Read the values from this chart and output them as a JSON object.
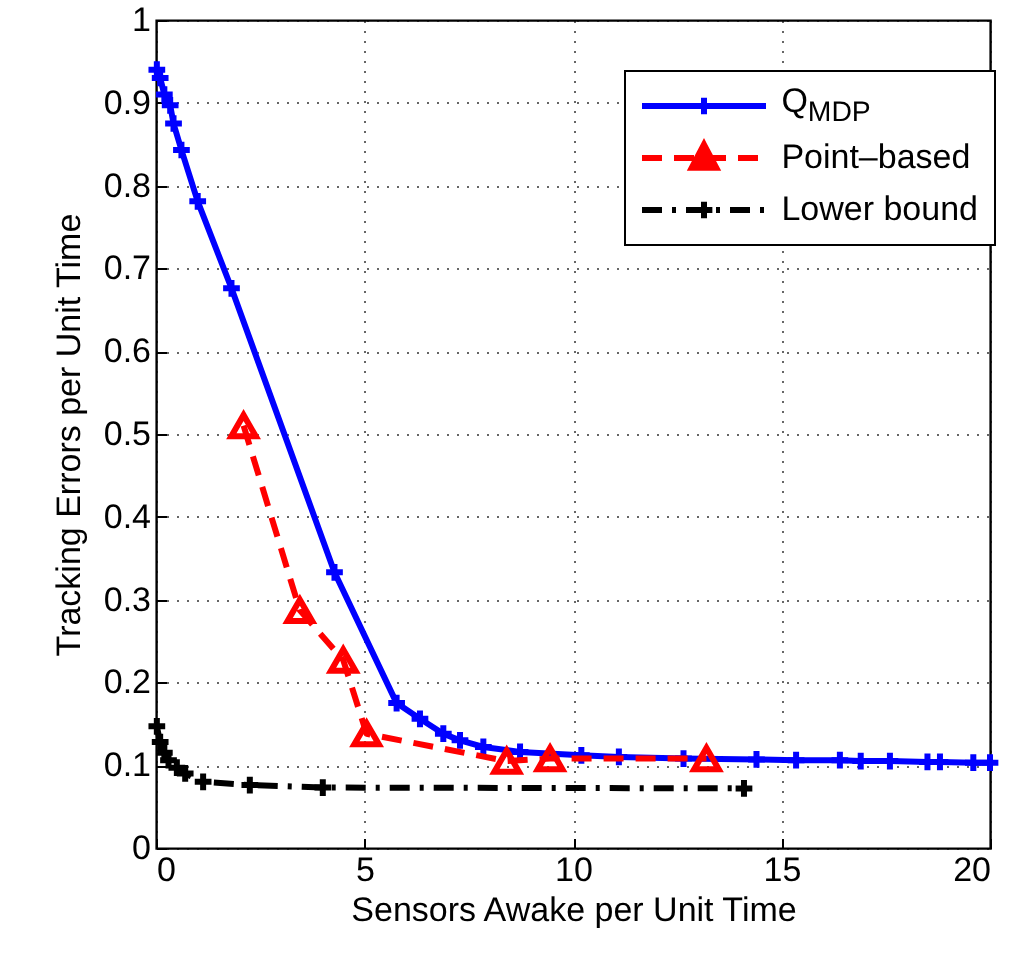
{
  "chart_data": {
    "type": "line",
    "xlabel": "Sensors Awake per Unit Time",
    "ylabel": "Tracking Errors per Unit Time",
    "xlim": [
      0,
      20
    ],
    "xticks": [
      0,
      5,
      10,
      15,
      20
    ],
    "ylim": [
      0,
      1
    ],
    "yticks": [
      0,
      0.1,
      0.2,
      0.3,
      0.4,
      0.5,
      0.6,
      0.7,
      0.8,
      0.9,
      1
    ],
    "grid": true,
    "legend": "top right",
    "series": [
      {
        "name": "Q$_{MDP}$",
        "color": "#0000ff",
        "line_style": "solid",
        "marker": "cross",
        "x": [
          0.02,
          0.1,
          0.2,
          0.34,
          0.42,
          0.61,
          1.0,
          1.81,
          4.28,
          5.77,
          6.33,
          6.89,
          7.29,
          7.85,
          8.73,
          10.2,
          11.1,
          12.65,
          14.4,
          15.35,
          16.4,
          16.9,
          17.6,
          18.5,
          18.8,
          19.6,
          20.0
        ],
        "values": [
          0.94,
          0.93,
          0.91,
          0.897,
          0.875,
          0.843,
          0.781,
          0.676,
          0.333,
          0.175,
          0.156,
          0.138,
          0.13,
          0.122,
          0.116,
          0.112,
          0.11,
          0.108,
          0.107,
          0.106,
          0.106,
          0.105,
          0.105,
          0.104,
          0.104,
          0.103,
          0.103
        ]
      },
      {
        "name": "Point–based",
        "color": "#ff0000",
        "line_style": "dashed",
        "marker": "triangle",
        "x": [
          2.1,
          3.45,
          4.49,
          5.05,
          8.41,
          9.45,
          13.2
        ],
        "values": [
          0.51,
          0.287,
          0.227,
          0.138,
          0.105,
          0.108,
          0.108
        ]
      },
      {
        "name": "Lower bound",
        "color": "#000000",
        "line_style": "dashdot",
        "marker": "cross",
        "x": [
          0.02,
          0.1,
          0.2,
          0.3,
          0.5,
          0.7,
          1.13,
          2.25,
          4.0,
          14.1
        ],
        "values": [
          0.147,
          0.128,
          0.115,
          0.106,
          0.097,
          0.09,
          0.08,
          0.076,
          0.073,
          0.072
        ]
      }
    ]
  }
}
